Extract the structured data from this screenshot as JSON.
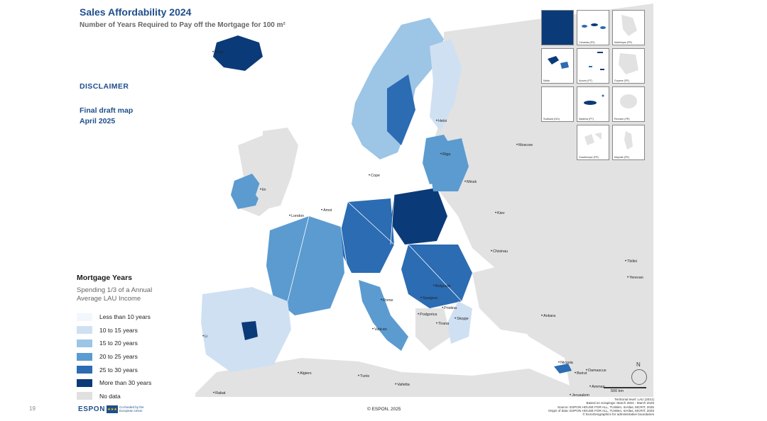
{
  "title": "Sales Affordability 2024",
  "subtitle": "Number of Years Required to Pay off the Mortgage for 100 m²",
  "disclaimer": "DISCLAIMER",
  "draft_line1": "Final draft map",
  "draft_line2": "April 2025",
  "legend": {
    "title": "Mortgage Years",
    "subtitle": "Spending 1/3 of a Annual Average LAU Income",
    "items": [
      {
        "label": "Less than 10 years",
        "color": "#f2f7fd"
      },
      {
        "label": "10 to 15 years",
        "color": "#cfe0f3"
      },
      {
        "label": "15 to 20 years",
        "color": "#9cc5e6"
      },
      {
        "label": "20 to 25 years",
        "color": "#5b9bd0"
      },
      {
        "label": "25 to 30 years",
        "color": "#2b6cb3"
      },
      {
        "label": "More than 30 years",
        "color": "#0b3a78"
      },
      {
        "label": "No data",
        "color": "#e0e0e0"
      }
    ]
  },
  "footer": {
    "page_number": "19",
    "logo": "ESPON",
    "eu_text": "Co-funded by the European Union",
    "copyright": "© ESPON, 2025",
    "sources": [
      "Territorial level: LAU (2021)",
      "Based on scrapings: March 2024 - March 2025",
      "Source: ESPON HOUSE FOR ALL, TUWien, InAtlas, MCRIT, 2025",
      "Origin of data: ESPON HOUSE FOR ALL, TUWien, InAtlas, MCRIT, 2025",
      "© EuroGeographics for administrative boundaries"
    ]
  },
  "scale_label": "500 km",
  "compass_label": "N",
  "insets": [
    {
      "label": "Canarias (ES)"
    },
    {
      "label": "Martinique (FR)"
    },
    {
      "label": "Malta"
    },
    {
      "label": "Acores (PT)"
    },
    {
      "label": "Guyane (FR)"
    },
    {
      "label": "Svalbard (NO)"
    },
    {
      "label": "Madeira (PT)"
    },
    {
      "label": "Reunion (FR)"
    },
    {
      "label": "Guadeloupe (FR)"
    },
    {
      "label": "Mayotte (FR)"
    }
  ],
  "cities": {
    "reykjavik": "Reyk",
    "london": "London",
    "amsterdam": "Amst",
    "copenhagen": "Cope",
    "minsk": "Minsk",
    "moscow": "Moscow",
    "kiev": "Kiev",
    "chisinau": "Chisinau",
    "tbilisi": "Tbilisi",
    "yerevan": "Yerevan",
    "ankara": "Ankara",
    "belgrade": "Belgrade",
    "sarajevo": "Sarajevo",
    "pristina": "Pristina",
    "podgorica": "Podgorica",
    "skopje": "Skopje",
    "tirana": "Tirana",
    "vatican": "Vatican",
    "nicosia": "Nicosia",
    "beirut": "Beirut",
    "damascus": "Damascus",
    "amman": "Amman",
    "jerusalem": "Jerusalem",
    "algiers": "Algiers",
    "tunis": "Tunis",
    "valletta": "Valletta",
    "rabat": "Rabat",
    "helsinki": "Helsi",
    "riga": "Riga",
    "dublin": "lin",
    "lisbon": "Li",
    "madrid": "M",
    "rome": "Rome",
    "sarajevo2": ""
  }
}
